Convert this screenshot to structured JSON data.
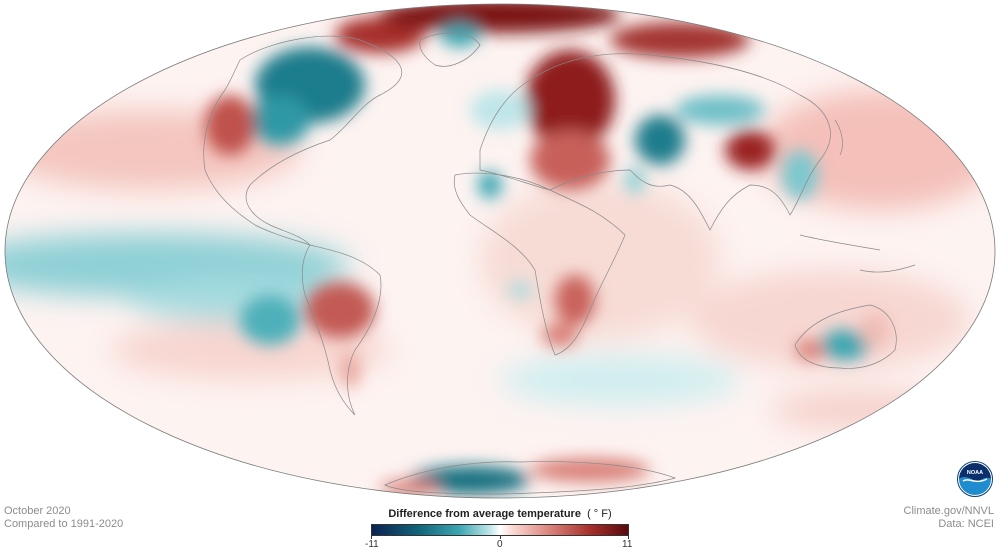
{
  "map": {
    "projection": "Mollweide",
    "colors": {
      "cold_extreme": "#0b2250",
      "cold": "#3aa6b1",
      "neutral": "#ffffff",
      "warm": "#d98078",
      "warm_extreme": "#5a0a0d",
      "coastline": "#8a8a8a"
    }
  },
  "info_left": {
    "date": "October 2020",
    "baseline": "Compared to 1991-2020"
  },
  "info_right": {
    "credit": "Climate.gov/NNVL",
    "source": "Data: NCEI"
  },
  "legend": {
    "title": "Difference from average temperature",
    "unit": "( ° F)",
    "min_label": "-11",
    "mid_label": "0",
    "max_label": "11",
    "min": -11,
    "max": 11
  },
  "logo": {
    "text": "NOAA",
    "icon": "noaa-logo-icon"
  }
}
